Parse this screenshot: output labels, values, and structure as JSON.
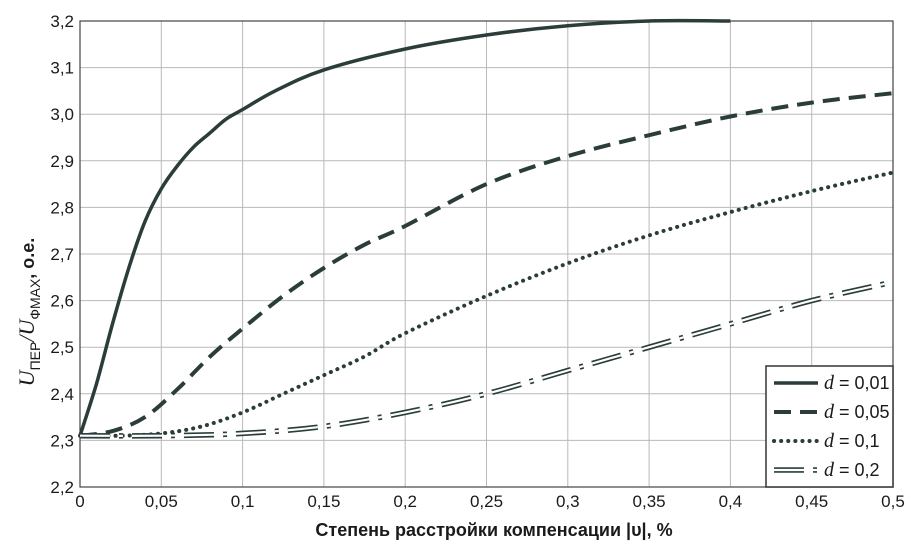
{
  "chart_data": {
    "type": "line",
    "xlabel": "Степень расстройки компенсации |υ|, %",
    "ylabel": {
      "main": "U",
      "sub1": "ПЕР",
      "slash": "/U",
      "sub2": "ФМАХ",
      "unit": ", о.е."
    },
    "xlim": [
      0,
      0.5
    ],
    "ylim": [
      2.2,
      3.2
    ],
    "x_ticks": [
      "0",
      "0,05",
      "0,1",
      "0,15",
      "0,2",
      "0,25",
      "0,3",
      "0,35",
      "0,4",
      "0,45",
      "0,5"
    ],
    "y_ticks": [
      "2,2",
      "2,3",
      "2,4",
      "2,5",
      "2,6",
      "2,7",
      "2,8",
      "2,9",
      "3,0",
      "3,1",
      "3,2"
    ],
    "grid": true,
    "legend_position": "bottom-right",
    "series": [
      {
        "name": "d = 0,01",
        "legend_var": "d",
        "legend_val": " = 0,01",
        "style": "solid",
        "color": "#2a3d3b",
        "x": [
          0,
          0.01,
          0.02,
          0.03,
          0.04,
          0.05,
          0.06,
          0.07,
          0.08,
          0.09,
          0.1,
          0.12,
          0.15,
          0.2,
          0.25,
          0.3,
          0.35,
          0.4
        ],
        "y": [
          2.31,
          2.42,
          2.55,
          2.67,
          2.77,
          2.84,
          2.89,
          2.93,
          2.96,
          2.99,
          3.01,
          3.05,
          3.095,
          3.14,
          3.17,
          3.19,
          3.2,
          3.2
        ]
      },
      {
        "name": "d = 0,05",
        "legend_var": "d",
        "legend_val": " = 0,05",
        "style": "dashed",
        "color": "#2a3d3b",
        "x": [
          0,
          0.02,
          0.04,
          0.06,
          0.08,
          0.1,
          0.125,
          0.15,
          0.175,
          0.2,
          0.25,
          0.3,
          0.35,
          0.4,
          0.45,
          0.5
        ],
        "y": [
          2.31,
          2.32,
          2.35,
          2.41,
          2.48,
          2.54,
          2.61,
          2.67,
          2.72,
          2.76,
          2.85,
          2.91,
          2.955,
          2.995,
          3.025,
          3.045
        ]
      },
      {
        "name": "d = 0,1",
        "legend_var": "d",
        "legend_val": " = 0,1",
        "style": "dotted",
        "color": "#2a3d3b",
        "x": [
          0,
          0.025,
          0.05,
          0.075,
          0.1,
          0.125,
          0.15,
          0.175,
          0.2,
          0.25,
          0.3,
          0.35,
          0.4,
          0.45,
          0.5
        ],
        "y": [
          2.31,
          2.31,
          2.315,
          2.33,
          2.36,
          2.4,
          2.44,
          2.48,
          2.53,
          2.61,
          2.68,
          2.74,
          2.79,
          2.835,
          2.875
        ]
      },
      {
        "name": "d = 0,2",
        "legend_var": "d",
        "legend_val": " = 0,2",
        "style": "dashdot",
        "color": "#2a3d3b",
        "x": [
          0,
          0.05,
          0.1,
          0.15,
          0.2,
          0.25,
          0.3,
          0.35,
          0.4,
          0.45,
          0.5
        ],
        "y": [
          2.31,
          2.31,
          2.315,
          2.33,
          2.36,
          2.4,
          2.45,
          2.5,
          2.55,
          2.6,
          2.64
        ]
      }
    ]
  }
}
